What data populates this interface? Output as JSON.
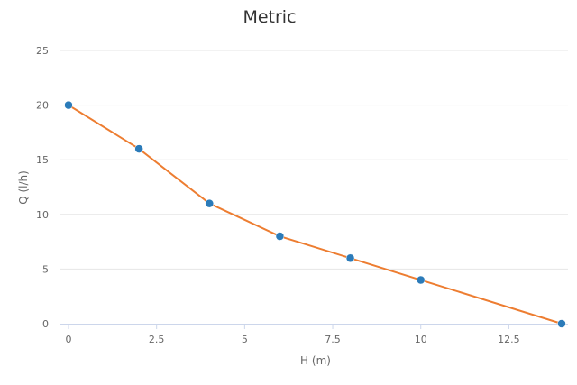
{
  "chart_data": {
    "type": "line",
    "title": "Metric",
    "xlabel": "H (m)",
    "ylabel": "Q (l/h)",
    "xlim": [
      0,
      14
    ],
    "ylim": [
      0,
      25
    ],
    "x_ticks": [
      0,
      2.5,
      5,
      7.5,
      10,
      12.5
    ],
    "x_tick_labels": [
      "0",
      "2.5",
      "5",
      "7.5",
      "10",
      "12.5"
    ],
    "y_ticks": [
      0,
      5,
      10,
      15,
      20,
      25
    ],
    "y_tick_labels": [
      "0",
      "5",
      "10",
      "15",
      "20",
      "25"
    ],
    "grid": "horizontal",
    "legend": "none",
    "series": [
      {
        "x": [
          0,
          2,
          4,
          6,
          8,
          10,
          14
        ],
        "values": [
          20,
          16,
          11,
          8,
          6,
          4,
          0
        ],
        "line_color": "#ed7d31",
        "marker_color": "#2b7bb9"
      }
    ]
  }
}
